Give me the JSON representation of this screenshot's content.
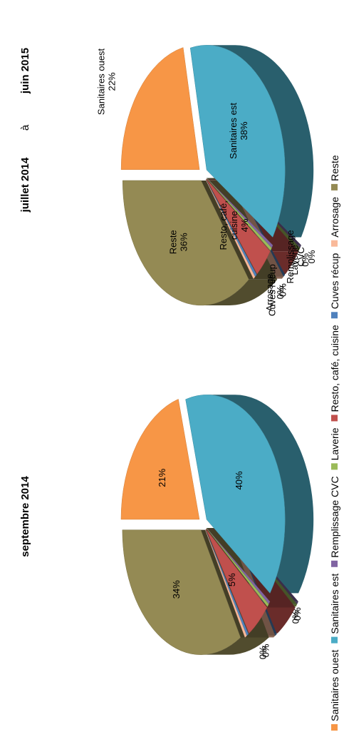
{
  "titles": {
    "left": "septembre 2014",
    "right_start": "juillet 2014",
    "right_sep": "à",
    "right_end": "juin 2015"
  },
  "legend": [
    {
      "label": "Sanitaires ouest",
      "color": "#f79646"
    },
    {
      "label": "Sanitaires est",
      "color": "#4bacc6"
    },
    {
      "label": "Remplissage CVC",
      "color": "#8064a2"
    },
    {
      "label": "Laverie",
      "color": "#9bbb59"
    },
    {
      "label": "Resto, café, cuisine",
      "color": "#c0504d"
    },
    {
      "label": "Cuves récup",
      "color": "#4f81bd"
    },
    {
      "label": "Arrosage",
      "color": "#f9b99a"
    },
    {
      "label": "Reste",
      "color": "#948a54"
    }
  ],
  "chart_data": [
    {
      "type": "pie",
      "title": "septembre 2014",
      "series": [
        {
          "name": "Sanitaires ouest",
          "value": 21,
          "label": "21%"
        },
        {
          "name": "Sanitaires est",
          "value": 40,
          "label": "40%"
        },
        {
          "name": "Remplissage CVC",
          "value": 0,
          "label": "0%"
        },
        {
          "name": "Laverie",
          "value": 0,
          "label": "0%"
        },
        {
          "name": "Resto, café, cuisine",
          "value": 5,
          "label": "5%"
        },
        {
          "name": "Cuves récup",
          "value": 0,
          "label": "0%"
        },
        {
          "name": "Arrosage",
          "value": 0,
          "label": "0%"
        },
        {
          "name": "Reste",
          "value": 34,
          "label": "34%"
        }
      ]
    },
    {
      "type": "pie",
      "title": "juillet 2014 à juin 2015",
      "series": [
        {
          "name": "Sanitaires ouest",
          "value": 22,
          "label": "Sanitaires ouest 22%"
        },
        {
          "name": "Sanitaires est",
          "value": 38,
          "label": "Sanitaires est 38%"
        },
        {
          "name": "Remplissage CVC",
          "value": 0,
          "label": "Remplissage CVC 0%"
        },
        {
          "name": "Laverie",
          "value": 0,
          "label": "Laverie 0%"
        },
        {
          "name": "Resto, café, cuisine",
          "value": 4,
          "label": "Resto, café, cuisine 4%"
        },
        {
          "name": "Cuves récup",
          "value": 0,
          "label": "Cuves récup 0%"
        },
        {
          "name": "Arrosage",
          "value": 0,
          "label": "Arrosage 0%"
        },
        {
          "name": "Reste",
          "value": 36,
          "label": "Reste 36%"
        }
      ]
    }
  ]
}
